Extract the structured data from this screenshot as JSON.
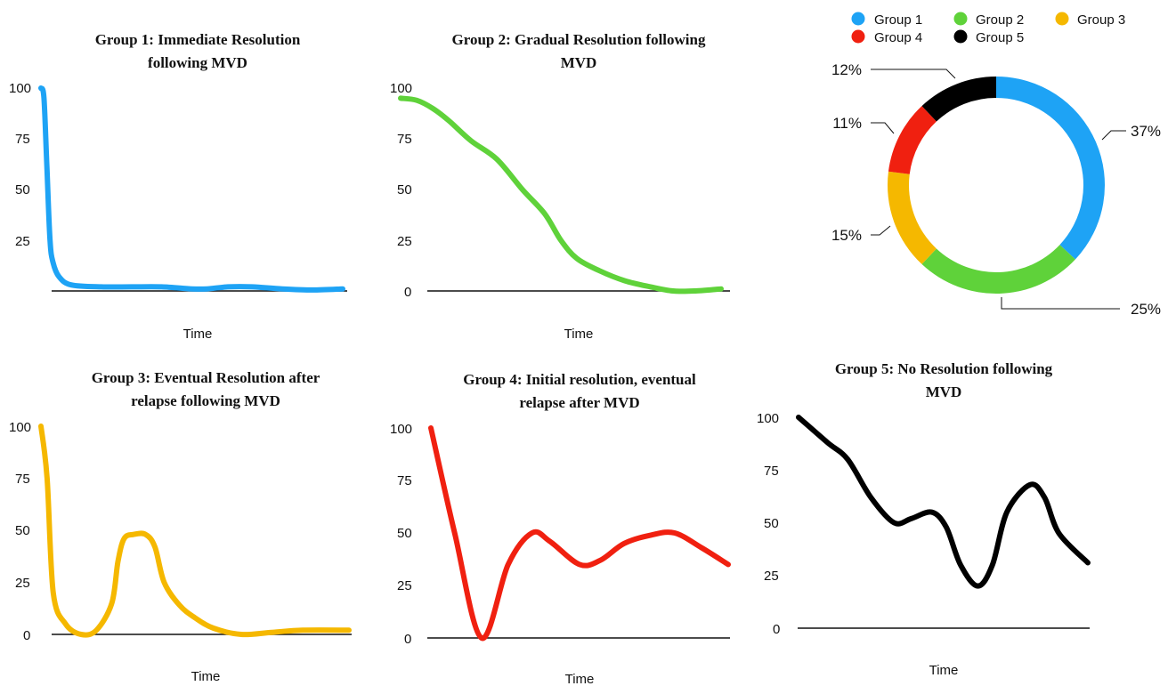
{
  "colors": {
    "group1": "#1ea3f5",
    "group2": "#5fd23a",
    "group3": "#f5b800",
    "group4": "#f02010",
    "group5": "#000000",
    "axis": "#111111"
  },
  "chart_data": [
    {
      "type": "line",
      "title_lines": [
        "Group 1: Immediate Resolution",
        "following MVD"
      ],
      "xlabel": "Time",
      "ylabel": "",
      "y_ticks": [
        "100",
        "75",
        "50",
        "25"
      ],
      "ylim": [
        0,
        100
      ],
      "xlim": [
        0,
        100
      ],
      "color": "group1",
      "series": [
        {
          "x": [
            0,
            1,
            2,
            3,
            4,
            6,
            10,
            20,
            30,
            40,
            50,
            55,
            62,
            70,
            80,
            90,
            100
          ],
          "y": [
            100,
            95,
            60,
            25,
            14,
            7,
            3,
            2,
            2,
            2,
            1,
            1,
            2,
            2,
            1,
            0.5,
            1
          ]
        }
      ]
    },
    {
      "type": "line",
      "title_lines": [
        "Group 2: Gradual Resolution following",
        "MVD"
      ],
      "xlabel": "Time",
      "ylabel": "",
      "y_ticks": [
        "100",
        "75",
        "50",
        "25",
        "0"
      ],
      "ylim": [
        0,
        100
      ],
      "xlim": [
        0,
        100
      ],
      "color": "group2",
      "series": [
        {
          "x": [
            0,
            5,
            10,
            15,
            22,
            30,
            38,
            45,
            50,
            55,
            62,
            70,
            78,
            85,
            92,
            100
          ],
          "y": [
            95,
            94,
            90,
            84,
            74,
            65,
            50,
            38,
            25,
            16,
            10,
            5,
            2,
            0,
            0,
            1
          ]
        }
      ]
    },
    {
      "type": "line",
      "title_lines": [
        "Group 3:  Eventual Resolution after",
        "relapse following MVD"
      ],
      "xlabel": "Time",
      "ylabel": "",
      "y_ticks": [
        "100",
        "75",
        "50",
        "25",
        "0"
      ],
      "ylim": [
        0,
        100
      ],
      "xlim": [
        0,
        100
      ],
      "color": "group3",
      "series": [
        {
          "x": [
            0,
            2,
            4,
            8,
            13,
            18,
            23,
            25,
            27,
            30,
            34,
            37,
            40,
            45,
            50,
            56,
            65,
            75,
            85,
            100
          ],
          "y": [
            100,
            75,
            20,
            5,
            0,
            2,
            15,
            35,
            46,
            48,
            48,
            42,
            25,
            14,
            8,
            3,
            0,
            1,
            2,
            2
          ]
        }
      ]
    },
    {
      "type": "line",
      "title_lines": [
        "Group 4:  Initial resolution, eventual",
        "relapse after MVD"
      ],
      "xlabel": "Time",
      "ylabel": "",
      "y_ticks": [
        "100",
        "75",
        "50",
        "25",
        "0"
      ],
      "ylim": [
        0,
        100
      ],
      "xlim": [
        0,
        100
      ],
      "color": "group4",
      "series": [
        {
          "x": [
            0,
            8,
            17,
            26,
            34,
            40,
            50,
            57,
            65,
            74,
            82,
            91,
            100
          ],
          "y": [
            100,
            50,
            0,
            35,
            50,
            46,
            35,
            37,
            45,
            49,
            50,
            43,
            35
          ]
        }
      ]
    },
    {
      "type": "line",
      "title_lines": [
        "Group 5: No Resolution following",
        "MVD"
      ],
      "xlabel": "Time",
      "ylabel": "",
      "y_ticks": [
        "100",
        "75",
        "50",
        "25",
        "0"
      ],
      "ylim": [
        0,
        100
      ],
      "xlim": [
        0,
        100
      ],
      "color": "group5",
      "series": [
        {
          "x": [
            0,
            10,
            17,
            25,
            33,
            39,
            46,
            51,
            56,
            62,
            67,
            72,
            80,
            85,
            90,
            100
          ],
          "y": [
            100,
            88,
            80,
            62,
            50,
            52,
            55,
            48,
            30,
            20,
            30,
            55,
            68,
            62,
            45,
            31
          ]
        }
      ]
    },
    {
      "type": "pie",
      "donut": true,
      "legend": [
        "Group 1",
        "Group 2",
        "Group 3",
        "Group 4",
        "Group 5"
      ],
      "slices": [
        {
          "label": "Group 1",
          "value": 37,
          "text": "37%",
          "color": "group1"
        },
        {
          "label": "Group 2",
          "value": 25,
          "text": "25%",
          "color": "group2"
        },
        {
          "label": "Group 3",
          "value": 15,
          "text": "15%",
          "color": "group3"
        },
        {
          "label": "Group 4",
          "value": 11,
          "text": "11%",
          "color": "group4"
        },
        {
          "label": "Group 5",
          "value": 12,
          "text": "12%",
          "color": "group5"
        }
      ],
      "legend_position": "top"
    }
  ]
}
